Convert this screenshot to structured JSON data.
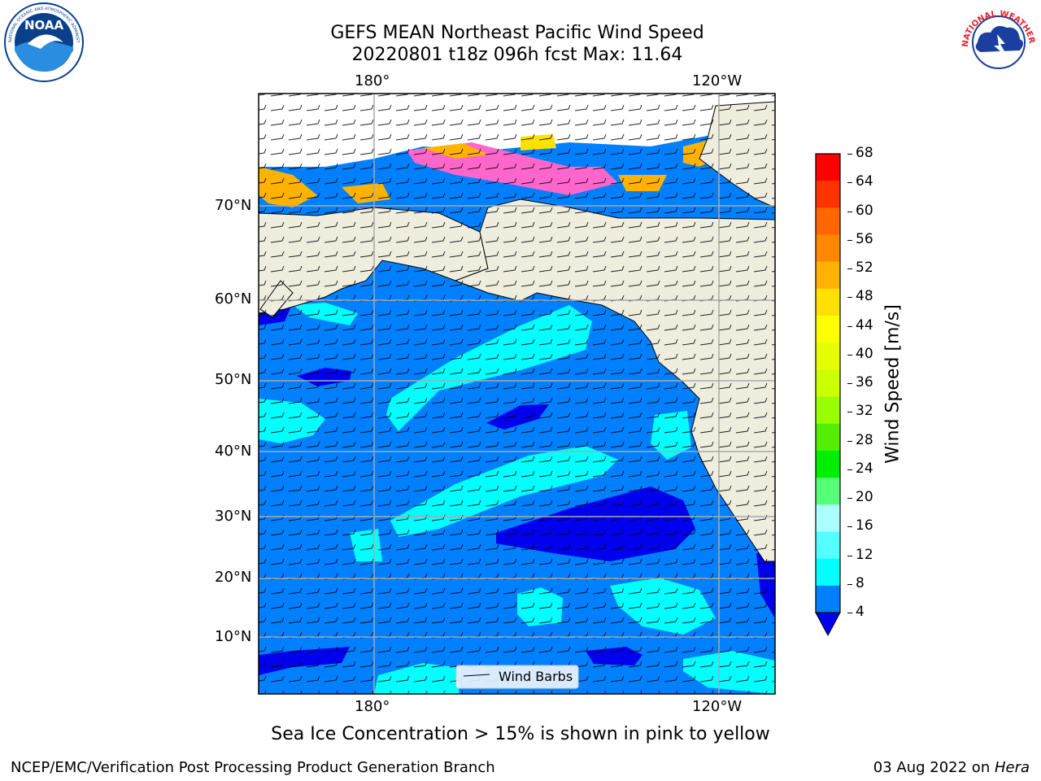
{
  "header": {
    "title_line1": "GEFS MEAN Northeast Pacific Wind Speed",
    "title_line2": "20220801 t18z 096h fcst   Max: 11.64"
  },
  "logos": {
    "noaa_text": "NOAA",
    "noaa_ring": "NATIONAL OCEANIC AND ATMOSPHERIC ADMINISTRATION · U.S. DEPARTMENT OF COMMERCE",
    "nws_ring": "NATIONAL WEATHER SERVICE"
  },
  "map": {
    "lon_labels": [
      "180°",
      "120°W"
    ],
    "lat_labels": [
      "70°N",
      "60°N",
      "50°N",
      "40°N",
      "30°N",
      "20°N",
      "10°N"
    ],
    "legend_label": "Wind Barbs"
  },
  "colorbar": {
    "label": "Wind Speed [m/s]",
    "ticks": [
      "68",
      "64",
      "60",
      "56",
      "52",
      "48",
      "44",
      "40",
      "36",
      "32",
      "28",
      "24",
      "20",
      "16",
      "12",
      "8",
      "4"
    ],
    "colors": [
      "#ff0000",
      "#ff3300",
      "#ff6600",
      "#ff8800",
      "#ffb300",
      "#ffe100",
      "#ffff00",
      "#e6ff00",
      "#ccff00",
      "#99ff00",
      "#55ee00",
      "#00ee00",
      "#55ff77",
      "#aaffff",
      "#55ffff",
      "#00ffff",
      "#0080ff"
    ],
    "under_color": "#0000ee"
  },
  "colors": {
    "land": "#efedde",
    "ocean_low": "#0080ff",
    "ocean_mid": "#00ffff",
    "ocean_calm": "#0000ee",
    "ice_pink": "#ff66cc",
    "ice_orange": "#ffb300",
    "ice_yellow": "#ffe100"
  },
  "footer": {
    "ice_note": "Sea Ice Concentration > 15% is shown in pink to yellow",
    "credit": "NCEP/EMC/Verification Post Processing Product Generation Branch",
    "date": "03 Aug 2022 on ",
    "machine": "Hera"
  }
}
